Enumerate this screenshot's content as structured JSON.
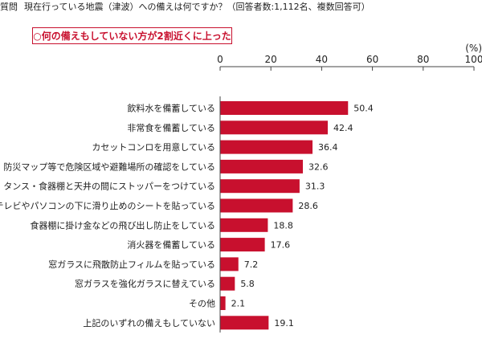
{
  "question": {
    "label": "質問",
    "text": "現在行っている地震（津波）への備えは何ですか？（回答者数:1,112名、複数回答可）"
  },
  "callout": "○何の備えもしていない方が2割近くに上った",
  "chart_data": {
    "type": "bar",
    "orientation": "horizontal",
    "unit": "(%)",
    "xlim": [
      0,
      100
    ],
    "ticks": [
      "0",
      "20",
      "40",
      "60",
      "80",
      "100"
    ],
    "bar_color": "#c8102e",
    "categories": [
      "飲料水を備蓄している",
      "非常食を備蓄している",
      "カセットコンロを用意している",
      "防災マップ等で危険区域や避難場所の確認をしている",
      "タンス・食器棚と天井の間にストッパーをつけている",
      "テレビやパソコンの下に滑り止めのシートを貼っている",
      "食器棚に掛け金などの飛び出し防止をしている",
      "消火器を備蓄している",
      "窓ガラスに飛散防止フィルムを貼っている",
      "窓ガラスを強化ガラスに替えている",
      "その他",
      "上記のいずれの備えもしていない"
    ],
    "values": [
      50.4,
      42.4,
      36.4,
      32.6,
      31.3,
      28.6,
      18.8,
      17.6,
      7.2,
      5.8,
      2.1,
      19.1
    ]
  }
}
